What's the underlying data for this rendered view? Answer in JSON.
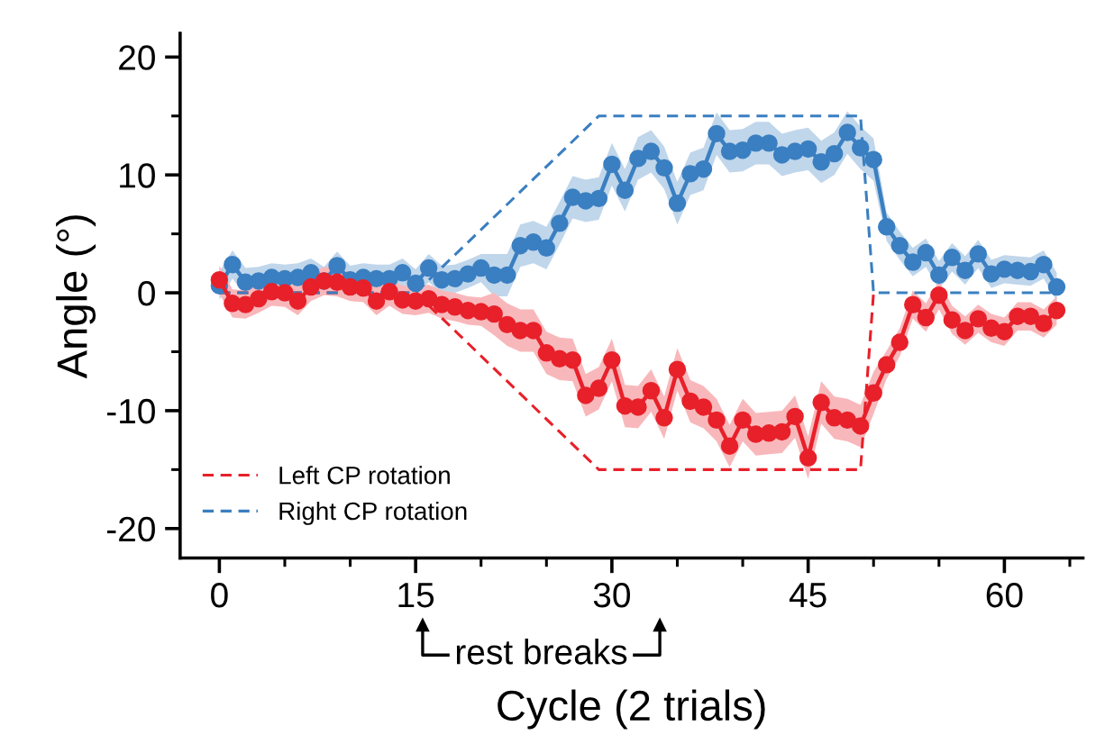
{
  "chart_data": {
    "type": "line",
    "xlabel": "Cycle (2 trials)",
    "ylabel": "Angle (°)",
    "xlim": [
      -3,
      66
    ],
    "xticks": [
      0,
      15,
      30,
      45,
      60
    ],
    "ylim": [
      -22.5,
      22
    ],
    "yticks": [
      -20,
      -10,
      0,
      10,
      20
    ],
    "grid": false,
    "legend": "bottom left",
    "marker": "circle",
    "annotations": [
      "rest breaks"
    ],
    "series": [
      {
        "color": "#3a7fc1",
        "x": [
          0,
          1,
          2,
          3,
          4,
          5,
          6,
          7,
          8,
          9,
          10,
          11,
          12,
          13,
          14,
          15,
          16,
          17,
          18,
          19,
          20,
          21,
          22,
          23,
          24,
          25,
          26,
          27,
          28,
          29,
          30,
          31,
          32,
          33,
          34,
          35,
          36,
          37,
          38,
          39,
          40,
          41,
          42,
          43,
          44,
          45,
          46,
          47,
          48,
          49,
          50,
          51,
          52,
          53,
          54,
          55,
          56,
          57,
          58,
          59,
          60,
          61,
          62,
          63,
          64
        ],
        "values": [
          0.6,
          2.4,
          0.9,
          1.0,
          1.3,
          1.2,
          1.3,
          1.7,
          1.0,
          2.3,
          1.1,
          1.3,
          1.2,
          1.2,
          1.7,
          0.8,
          2.1,
          1.1,
          1.2,
          1.6,
          2.1,
          1.5,
          1.5,
          4.0,
          4.3,
          3.8,
          5.9,
          8.1,
          7.8,
          8.0,
          10.9,
          8.7,
          11.4,
          12.0,
          10.6,
          7.6,
          10.1,
          10.5,
          13.5,
          12.0,
          12.1,
          12.7,
          12.7,
          11.7,
          12.0,
          12.2,
          11.1,
          11.8,
          13.6,
          12.3,
          11.3,
          5.6,
          4.0,
          2.6,
          3.4,
          1.5,
          3.0,
          1.9,
          3.3,
          1.6,
          2.0,
          1.9,
          1.8,
          2.4,
          0.5
        ],
        "lower": [
          -0.6,
          1.2,
          -0.3,
          -0.2,
          0.1,
          0.0,
          0.1,
          0.5,
          -0.2,
          1.1,
          -0.1,
          0.1,
          0.0,
          0.0,
          0.5,
          -0.4,
          0.9,
          -0.1,
          0.0,
          0.4,
          0.9,
          -0.3,
          -0.3,
          2.2,
          2.5,
          2.0,
          4.1,
          6.3,
          6.0,
          6.2,
          9.1,
          6.9,
          9.6,
          10.2,
          8.8,
          5.8,
          8.3,
          8.7,
          11.7,
          10.2,
          10.3,
          10.9,
          10.9,
          9.9,
          10.2,
          10.4,
          9.3,
          10.0,
          11.8,
          10.5,
          9.5,
          4.4,
          2.8,
          1.4,
          2.2,
          0.3,
          1.8,
          0.7,
          2.1,
          0.4,
          0.8,
          0.7,
          0.6,
          1.2,
          -0.7
        ],
        "upper": [
          1.8,
          3.6,
          2.1,
          2.2,
          2.5,
          2.4,
          2.5,
          2.9,
          2.2,
          3.5,
          2.3,
          2.5,
          2.4,
          2.4,
          2.9,
          2.0,
          3.3,
          2.3,
          2.4,
          2.8,
          3.3,
          3.3,
          3.3,
          5.8,
          6.1,
          5.6,
          7.7,
          9.9,
          9.6,
          9.8,
          12.7,
          10.5,
          13.2,
          13.8,
          12.4,
          9.4,
          11.9,
          12.3,
          15.3,
          13.8,
          13.9,
          14.5,
          14.5,
          13.5,
          13.8,
          14.0,
          12.9,
          13.6,
          15.4,
          14.1,
          13.1,
          6.8,
          5.2,
          3.8,
          4.6,
          2.7,
          4.2,
          3.1,
          4.5,
          2.8,
          3.2,
          3.1,
          3.0,
          3.6,
          1.7
        ]
      },
      {
        "color": "#e8202a",
        "x": [
          0,
          1,
          2,
          3,
          4,
          5,
          6,
          7,
          8,
          9,
          10,
          11,
          12,
          13,
          14,
          15,
          16,
          17,
          18,
          19,
          20,
          21,
          22,
          23,
          24,
          25,
          26,
          27,
          28,
          29,
          30,
          31,
          32,
          33,
          34,
          35,
          36,
          37,
          38,
          39,
          40,
          41,
          42,
          43,
          44,
          45,
          46,
          47,
          48,
          49,
          50,
          51,
          52,
          53,
          54,
          55,
          56,
          57,
          58,
          59,
          60,
          61,
          62,
          63,
          64
        ],
        "values": [
          1.1,
          -0.9,
          -1.0,
          -0.5,
          0.1,
          0.0,
          -0.7,
          0.5,
          1.0,
          0.9,
          0.5,
          0.4,
          -0.7,
          0.1,
          -0.6,
          -0.7,
          -0.5,
          -1.0,
          -1.2,
          -1.5,
          -1.6,
          -1.8,
          -2.7,
          -3.2,
          -3.2,
          -5.1,
          -5.6,
          -5.7,
          -8.7,
          -8.1,
          -5.7,
          -9.6,
          -9.7,
          -8.3,
          -10.6,
          -6.5,
          -9.2,
          -9.7,
          -10.8,
          -13.0,
          -10.8,
          -12.0,
          -11.9,
          -11.8,
          -10.5,
          -14.0,
          -9.3,
          -10.6,
          -10.8,
          -11.3,
          -8.5,
          -6.1,
          -4.2,
          -1.0,
          -2.1,
          -0.2,
          -2.3,
          -3.2,
          -2.2,
          -3.0,
          -3.3,
          -2.0,
          -2.0,
          -2.6,
          -1.5
        ],
        "lower": [
          -0.1,
          -2.1,
          -2.2,
          -1.7,
          -1.1,
          -1.2,
          -1.9,
          -0.7,
          -0.2,
          -0.3,
          -0.7,
          -0.8,
          -1.9,
          -1.1,
          -1.8,
          -1.9,
          -1.7,
          -2.2,
          -2.4,
          -2.7,
          -2.8,
          -3.6,
          -4.5,
          -5.0,
          -5.0,
          -6.9,
          -7.4,
          -7.5,
          -10.5,
          -9.9,
          -7.5,
          -11.4,
          -11.5,
          -10.1,
          -12.4,
          -8.3,
          -11.0,
          -11.5,
          -12.6,
          -14.8,
          -12.6,
          -13.8,
          -13.7,
          -13.6,
          -12.3,
          -15.8,
          -11.1,
          -12.4,
          -12.6,
          -13.1,
          -10.3,
          -7.3,
          -5.4,
          -2.2,
          -3.3,
          -1.4,
          -3.5,
          -4.4,
          -3.4,
          -4.2,
          -4.5,
          -3.2,
          -3.2,
          -3.8,
          -2.7
        ],
        "upper": [
          2.3,
          0.3,
          0.2,
          0.7,
          1.3,
          1.2,
          0.5,
          1.7,
          2.2,
          2.1,
          1.7,
          1.6,
          0.5,
          1.3,
          0.6,
          0.5,
          0.7,
          0.2,
          0.0,
          -0.3,
          -0.4,
          0.0,
          -0.9,
          -1.4,
          -1.4,
          -3.3,
          -3.8,
          -3.9,
          -6.9,
          -6.3,
          -3.9,
          -7.8,
          -7.9,
          -6.5,
          -8.8,
          -4.7,
          -7.4,
          -7.9,
          -9.0,
          -11.2,
          -9.0,
          -10.2,
          -10.1,
          -10.0,
          -8.7,
          -12.2,
          -7.5,
          -8.8,
          -9.0,
          -9.5,
          -6.7,
          -4.9,
          -3.0,
          0.2,
          -0.9,
          1.0,
          -1.1,
          -2.0,
          -1.0,
          -1.8,
          -2.1,
          -0.8,
          -0.8,
          -1.4,
          -0.3
        ]
      },
      {
        "name": "Left CP rotation",
        "color": "#e8202a",
        "line_style": "dashed",
        "marker": "none",
        "x": [
          0,
          15,
          29,
          49,
          50
        ],
        "values": [
          0,
          0,
          -15,
          -15,
          0
        ]
      },
      {
        "name": "Right CP rotation",
        "color": "#3a7fc1",
        "line_style": "dashed",
        "marker": "none",
        "x": [
          0,
          15,
          29,
          49,
          50,
          64
        ],
        "values": [
          0,
          0,
          15,
          15,
          0,
          0
        ]
      }
    ]
  }
}
